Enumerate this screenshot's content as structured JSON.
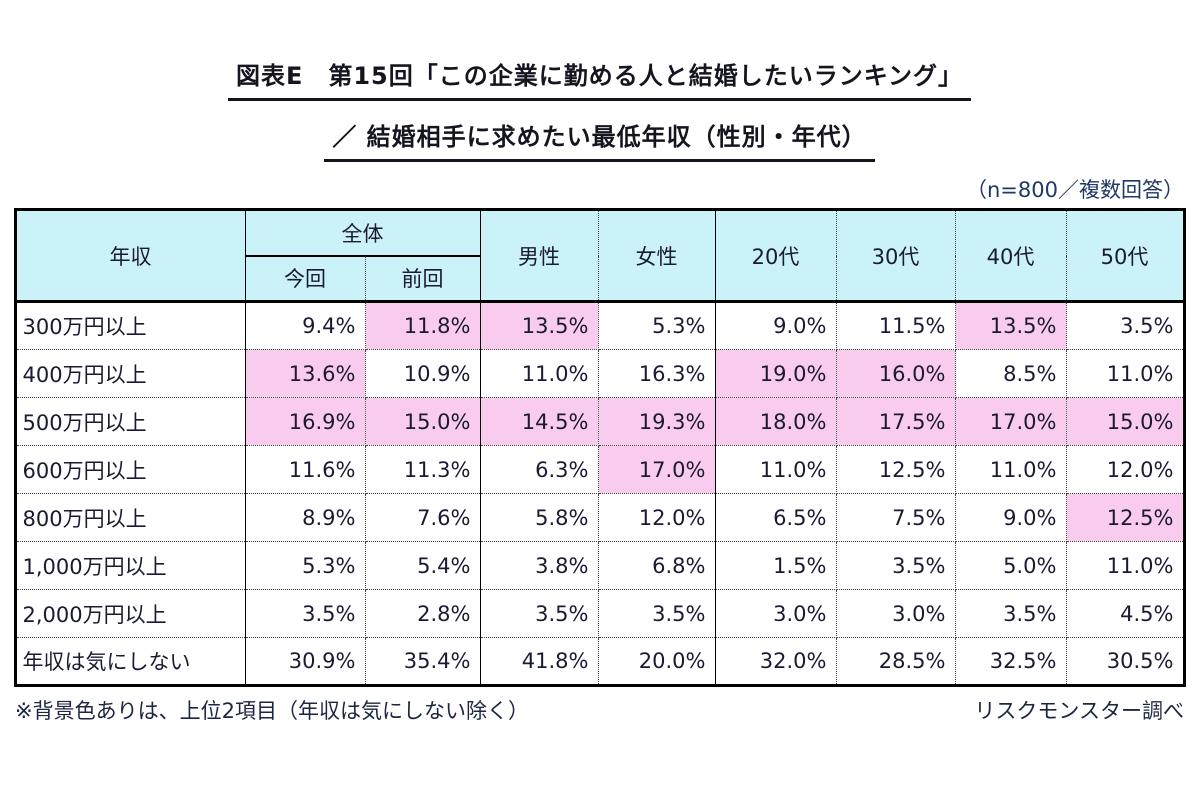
{
  "title": {
    "line1": "図表E　第15回「この企業に勤める人と結婚したいランキング」",
    "line2": "／ 結婚相手に求めたい最低年収（性別・年代）"
  },
  "top_note": "（n=800／複数回答）",
  "table": {
    "header": {
      "income": "年収",
      "overall": "全体",
      "overall_sub": [
        "今回",
        "前回"
      ],
      "cols": [
        "男性",
        "女性",
        "20代",
        "30代",
        "40代",
        "50代"
      ]
    },
    "rows": [
      {
        "label": "300万円以上",
        "values": [
          "9.4%",
          "11.8%",
          "13.5%",
          "5.3%",
          "9.0%",
          "11.5%",
          "13.5%",
          "3.5%"
        ],
        "highlight": [
          1,
          2,
          6
        ]
      },
      {
        "label": "400万円以上",
        "values": [
          "13.6%",
          "10.9%",
          "11.0%",
          "16.3%",
          "19.0%",
          "16.0%",
          "8.5%",
          "11.0%"
        ],
        "highlight": [
          0,
          4,
          5
        ]
      },
      {
        "label": "500万円以上",
        "values": [
          "16.9%",
          "15.0%",
          "14.5%",
          "19.3%",
          "18.0%",
          "17.5%",
          "17.0%",
          "15.0%"
        ],
        "highlight": [
          0,
          1,
          2,
          3,
          4,
          5,
          6,
          7
        ]
      },
      {
        "label": "600万円以上",
        "values": [
          "11.6%",
          "11.3%",
          "6.3%",
          "17.0%",
          "11.0%",
          "12.5%",
          "11.0%",
          "12.0%"
        ],
        "highlight": [
          3
        ]
      },
      {
        "label": "800万円以上",
        "values": [
          "8.9%",
          "7.6%",
          "5.8%",
          "12.0%",
          "6.5%",
          "7.5%",
          "9.0%",
          "12.5%"
        ],
        "highlight": [
          7
        ]
      },
      {
        "label": "1,000万円以上",
        "values": [
          "5.3%",
          "5.4%",
          "3.8%",
          "6.8%",
          "1.5%",
          "3.5%",
          "5.0%",
          "11.0%"
        ],
        "highlight": []
      },
      {
        "label": "2,000万円以上",
        "values": [
          "3.5%",
          "2.8%",
          "3.5%",
          "3.5%",
          "3.0%",
          "3.0%",
          "3.5%",
          "4.5%"
        ],
        "highlight": []
      },
      {
        "label": "年収は気にしない",
        "values": [
          "30.9%",
          "35.4%",
          "41.8%",
          "20.0%",
          "32.0%",
          "28.5%",
          "32.5%",
          "30.5%"
        ],
        "highlight": []
      }
    ]
  },
  "footer": {
    "left": "※背景色ありは、上位2項目（年収は気にしない除く）",
    "right": "リスクモンスター調べ"
  },
  "colors": {
    "header_bg": "#cbf2f8",
    "highlight_bg": "#f9cbee",
    "note_blue": "#1f3864",
    "text": "#1a1a33",
    "border": "#000000"
  },
  "chart_data": {
    "type": "table",
    "title": "第15回「この企業に勤める人と結婚したいランキング」／結婚相手に求めたい最低年収（性別・年代）",
    "sample_note": "n=800／複数回答",
    "unit": "%",
    "columns": [
      "全体 今回",
      "全体 前回",
      "男性",
      "女性",
      "20代",
      "30代",
      "40代",
      "50代"
    ],
    "row_labels": [
      "300万円以上",
      "400万円以上",
      "500万円以上",
      "600万円以上",
      "800万円以上",
      "1,000万円以上",
      "2,000万円以上",
      "年収は気にしない"
    ],
    "values_percent": [
      [
        9.4,
        11.8,
        13.5,
        5.3,
        9.0,
        11.5,
        13.5,
        3.5
      ],
      [
        13.6,
        10.9,
        11.0,
        16.3,
        19.0,
        16.0,
        8.5,
        11.0
      ],
      [
        16.9,
        15.0,
        14.5,
        19.3,
        18.0,
        17.5,
        17.0,
        15.0
      ],
      [
        11.6,
        11.3,
        6.3,
        17.0,
        11.0,
        12.5,
        11.0,
        12.0
      ],
      [
        8.9,
        7.6,
        5.8,
        12.0,
        6.5,
        7.5,
        9.0,
        12.5
      ],
      [
        5.3,
        5.4,
        3.8,
        6.8,
        1.5,
        3.5,
        5.0,
        11.0
      ],
      [
        3.5,
        2.8,
        3.5,
        3.5,
        3.0,
        3.0,
        3.5,
        4.5
      ],
      [
        30.9,
        35.4,
        41.8,
        20.0,
        32.0,
        28.5,
        32.5,
        30.5
      ]
    ],
    "highlight_meaning": "背景色ありは、上位2項目（年収は気にしない除く）"
  }
}
